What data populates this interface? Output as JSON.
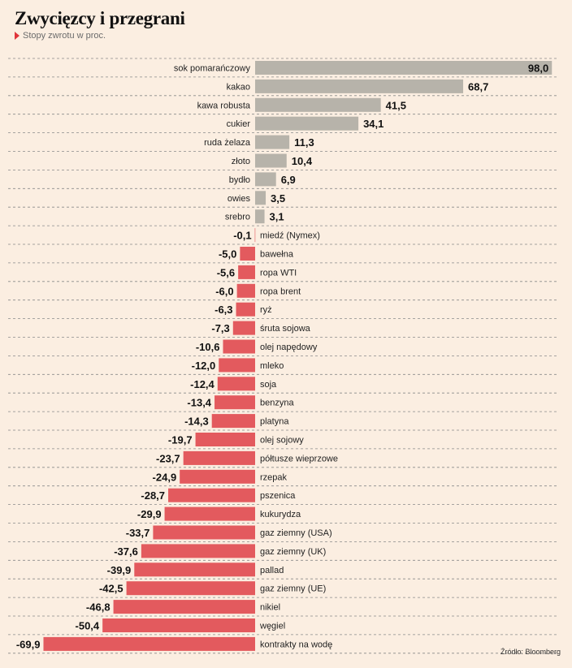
{
  "header": {
    "title": "Zwycięzcy i przegrani",
    "subtitle": "Stopy zwrotu w proc."
  },
  "footer": {
    "source": "Źródło: Bloomberg"
  },
  "colors": {
    "positive": "#b7b3aa",
    "negative": "#e35a5e",
    "background": "#fbeee1",
    "gridline": "#8a8a8a"
  },
  "chart_data": {
    "type": "bar",
    "orientation": "horizontal",
    "grid": true,
    "xlim": [
      -69.9,
      98.0
    ],
    "categories": [
      "sok pomarańczowy",
      "kakao",
      "kawa robusta",
      "cukier",
      "ruda żelaza",
      "złoto",
      "bydło",
      "owies",
      "srebro",
      "miedź (Nymex)",
      "bawełna",
      "ropa WTI",
      "ropa brent",
      "ryż",
      "śruta sojowa",
      "olej napędowy",
      "mleko",
      "soja",
      "benzyna",
      "platyna",
      "olej sojowy",
      "półtusze wieprzowe",
      "rzepak",
      "pszenica",
      "kukurydza",
      "gaz ziemny (USA)",
      "gaz ziemny (UK)",
      "pallad",
      "gaz ziemny (UE)",
      "nikiel",
      "węgiel",
      "kontrakty na wodę"
    ],
    "values": [
      98.0,
      68.7,
      41.5,
      34.1,
      11.3,
      10.4,
      6.9,
      3.5,
      3.1,
      -0.1,
      -5.0,
      -5.6,
      -6.0,
      -6.3,
      -7.3,
      -10.6,
      -12.0,
      -12.4,
      -13.4,
      -14.3,
      -19.7,
      -23.7,
      -24.9,
      -28.7,
      -29.9,
      -33.7,
      -37.6,
      -39.9,
      -42.5,
      -46.8,
      -50.4,
      -69.9
    ],
    "value_labels": [
      "98,0",
      "68,7",
      "41,5",
      "34,1",
      "11,3",
      "10,4",
      "6,9",
      "3,5",
      "3,1",
      "-0,1",
      "-5,0",
      "-5,6",
      "-6,0",
      "-6,3",
      "-7,3",
      "-10,6",
      "-12,0",
      "-12,4",
      "-13,4",
      "-14,3",
      "-19,7",
      "-23,7",
      "-24,9",
      "-28,7",
      "-29,9",
      "-33,7",
      "-37,6",
      "-39,9",
      "-42,5",
      "-46,8",
      "-50,4",
      "-69,9"
    ]
  }
}
